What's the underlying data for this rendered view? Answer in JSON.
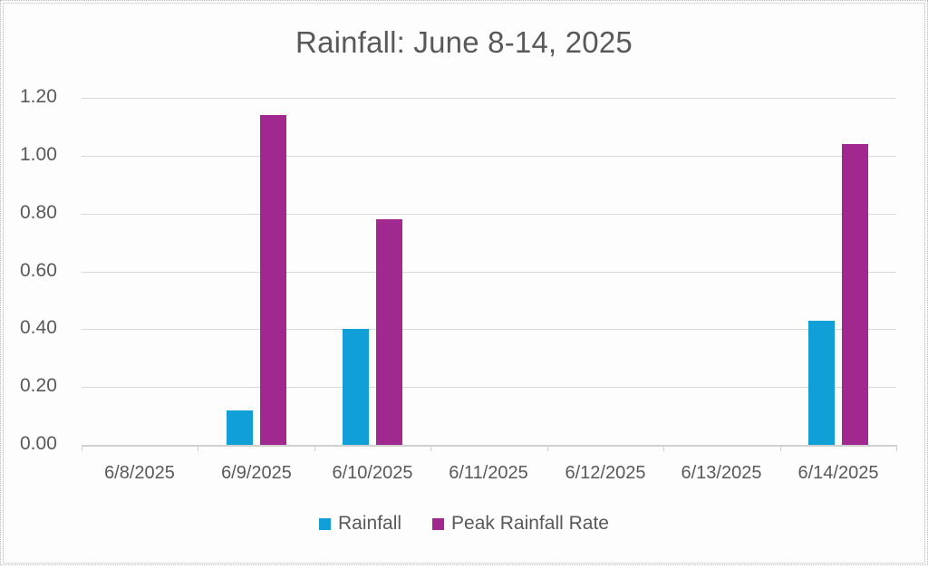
{
  "chart_data": {
    "type": "bar",
    "title": "Rainfall:  June 8-14, 2025",
    "xlabel": "",
    "ylabel": "",
    "categories": [
      "6/8/2025",
      "6/9/2025",
      "6/10/2025",
      "6/11/2025",
      "6/12/2025",
      "6/13/2025",
      "6/14/2025"
    ],
    "series": [
      {
        "name": "Rainfall",
        "color": "#119FD8",
        "values": [
          0,
          0.12,
          0.4,
          0,
          0,
          0,
          0.43
        ]
      },
      {
        "name": "Peak Rainfall Rate",
        "color": "#A0288F",
        "values": [
          0,
          1.14,
          0.78,
          0,
          0,
          0,
          1.04
        ]
      }
    ],
    "ylim": [
      0,
      1.2
    ],
    "yticks": [
      "0.00",
      "0.20",
      "0.40",
      "0.60",
      "0.80",
      "1.00",
      "1.20"
    ],
    "grid": true,
    "legend_position": "bottom"
  }
}
